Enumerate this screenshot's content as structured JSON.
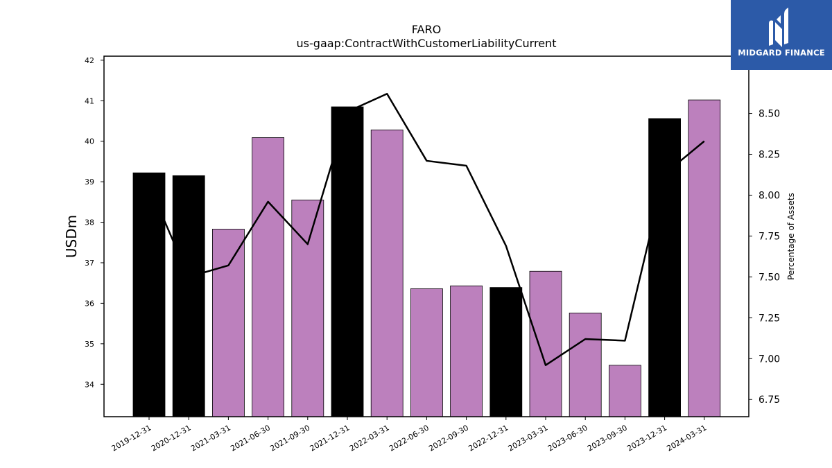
{
  "chart_data": {
    "type": "bar+line",
    "title": "FARO",
    "subtitle": "us-gaap:ContractWithCustomerLiabilityCurrent",
    "ylabel": "USDm",
    "y2label": "Percentage of Assets",
    "ylim": [
      33.2,
      42.1
    ],
    "y2lim": [
      6.645,
      8.85
    ],
    "yticks": [
      "34",
      "35",
      "36",
      "37",
      "38",
      "39",
      "40",
      "41",
      "42"
    ],
    "y2ticks": [
      "6.75",
      "7.00",
      "7.25",
      "7.50",
      "7.75",
      "8.00",
      "8.25",
      "8.50"
    ],
    "categories": [
      "2019-12-31",
      "2020-12-31",
      "2021-03-31",
      "2021-06-30",
      "2021-09-30",
      "2021-12-31",
      "2022-03-31",
      "2022-06-30",
      "2022-09-30",
      "2022-12-31",
      "2023-03-31",
      "2023-06-30",
      "2023-09-30",
      "2023-12-31",
      "2024-03-31"
    ],
    "bars": [
      39.22,
      39.15,
      37.83,
      40.09,
      38.55,
      40.85,
      40.28,
      36.36,
      36.43,
      36.39,
      36.79,
      35.76,
      34.47,
      40.56,
      41.02
    ],
    "bar_colors": [
      "#000000",
      "#000000",
      "#bc80bd",
      "#bc80bd",
      "#bc80bd",
      "#000000",
      "#bc80bd",
      "#bc80bd",
      "#bc80bd",
      "#000000",
      "#bc80bd",
      "#bc80bd",
      "#bc80bd",
      "#000000",
      "#bc80bd"
    ],
    "line_values": [
      8.06,
      7.5,
      7.57,
      7.96,
      7.7,
      8.51,
      8.62,
      8.21,
      8.18,
      7.69,
      6.96,
      7.12,
      7.11,
      8.13,
      8.33
    ]
  },
  "logo": {
    "text": "MIDGARD FINANCE",
    "icon": "midgard-logo-icon",
    "color": "#2c5aa8"
  }
}
